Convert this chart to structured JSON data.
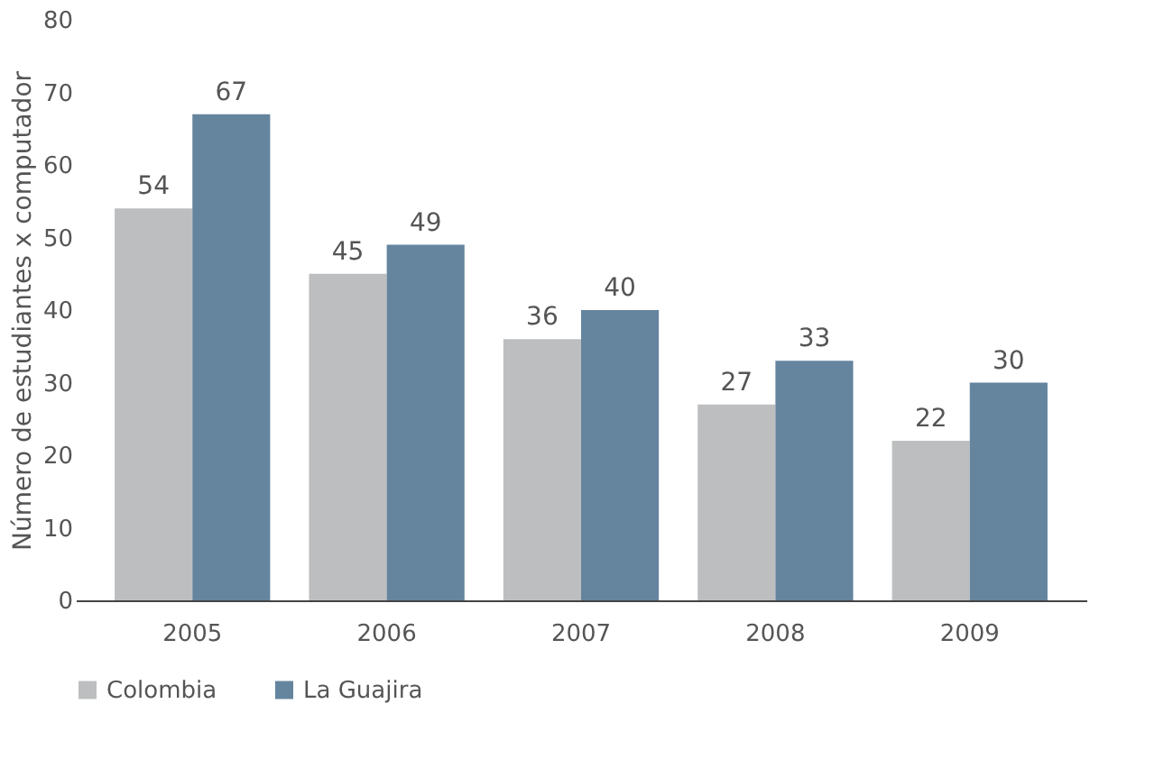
{
  "chart_data": {
    "type": "bar",
    "ylabel": "Número de estudiantes x computador",
    "categories": [
      "2005",
      "2006",
      "2007",
      "2008",
      "2009"
    ],
    "series": [
      {
        "name": "Colombia",
        "color": "#bdbec0",
        "values": [
          54,
          45,
          36,
          27,
          22
        ]
      },
      {
        "name": "La Guajira",
        "color": "#65849e",
        "values": [
          67,
          49,
          40,
          33,
          30
        ]
      }
    ],
    "ylim": [
      0,
      80
    ],
    "yticks": [
      0,
      10,
      20,
      30,
      40,
      50,
      60,
      70,
      80
    ],
    "grid": false,
    "legend": "bottom",
    "data_labels": true
  }
}
